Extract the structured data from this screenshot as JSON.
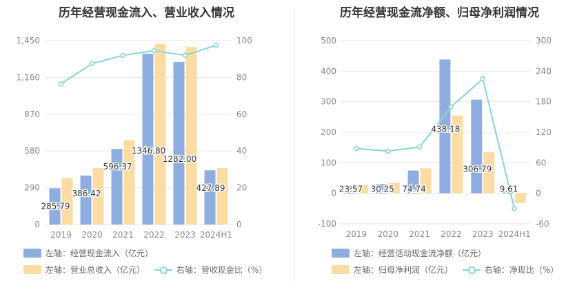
{
  "chart_data": [
    {
      "type": "bar",
      "title": "历年经营现金流入、营业收入情况",
      "categories": [
        "2019",
        "2020",
        "2021",
        "2022",
        "2023",
        "2024H1"
      ],
      "series": [
        {
          "name": "左轴：经营现金流入（亿元）",
          "axis": "left",
          "type": "bar",
          "color": "#8eaee0",
          "values": [
            285.79,
            386.42,
            596.37,
            1346.8,
            1282.0,
            427.89
          ],
          "labels": [
            "285.79",
            "386.42",
            "596.37",
            "1346.80",
            "1282.00",
            "427.89"
          ]
        },
        {
          "name": "左轴：营业总收入（亿元）",
          "axis": "left",
          "type": "bar",
          "color": "#fddca3",
          "values": [
            365,
            445,
            665,
            1425,
            1400,
            445
          ]
        },
        {
          "name": "右轴：营收现金比（%）",
          "axis": "right",
          "type": "line",
          "color": "#86d3d8",
          "values": [
            76.5,
            87.5,
            92,
            94.5,
            92,
            97.5
          ]
        }
      ],
      "yleft": {
        "min": 0,
        "max": 1450,
        "ticks": [
          0,
          290,
          580,
          870,
          1160,
          1450
        ],
        "tick_labels": [
          "0",
          "290",
          "580",
          "870",
          "1,160",
          "1,450"
        ]
      },
      "yright": {
        "min": 0,
        "max": 100,
        "ticks": [
          0,
          20,
          40,
          60,
          80,
          100
        ],
        "tick_labels": [
          "0",
          "20",
          "40",
          "60",
          "80",
          "100"
        ]
      },
      "grid": true,
      "legend_position": "bottom-left"
    },
    {
      "type": "bar",
      "title": "历年经营现金流净额、归母净利润情况",
      "categories": [
        "2019",
        "2020",
        "2021",
        "2022",
        "2023",
        "2024H1"
      ],
      "series": [
        {
          "name": "左轴：经营活动现金流净额（亿元）",
          "axis": "left",
          "type": "bar",
          "color": "#8eaee0",
          "values": [
            23.57,
            30.25,
            74.74,
            438.18,
            306.79,
            9.61
          ],
          "labels": [
            "23.57",
            "30.25",
            "74.74",
            "438.18",
            "306.79",
            "9.61"
          ]
        },
        {
          "name": "左轴：归母净利润（亿元）",
          "axis": "left",
          "type": "bar",
          "color": "#fddca3",
          "values": [
            27,
            35,
            82,
            255,
            135,
            -32
          ]
        },
        {
          "name": "右轴：净现比（%）",
          "axis": "right",
          "type": "line",
          "color": "#86d3d8",
          "values": [
            88,
            83,
            91,
            170,
            225,
            -30
          ]
        }
      ],
      "yleft": {
        "min": -100,
        "max": 500,
        "ticks": [
          -100,
          0,
          100,
          200,
          300,
          400,
          500
        ],
        "tick_labels": [
          "-100",
          "0",
          "100",
          "200",
          "300",
          "400",
          "500"
        ]
      },
      "yright": {
        "min": -60,
        "max": 300,
        "ticks": [
          -60,
          0,
          60,
          120,
          180,
          240,
          300
        ],
        "tick_labels": [
          "-60",
          "0",
          "60",
          "120",
          "180",
          "240",
          "300"
        ]
      },
      "grid": true,
      "legend_position": "bottom-left"
    }
  ]
}
